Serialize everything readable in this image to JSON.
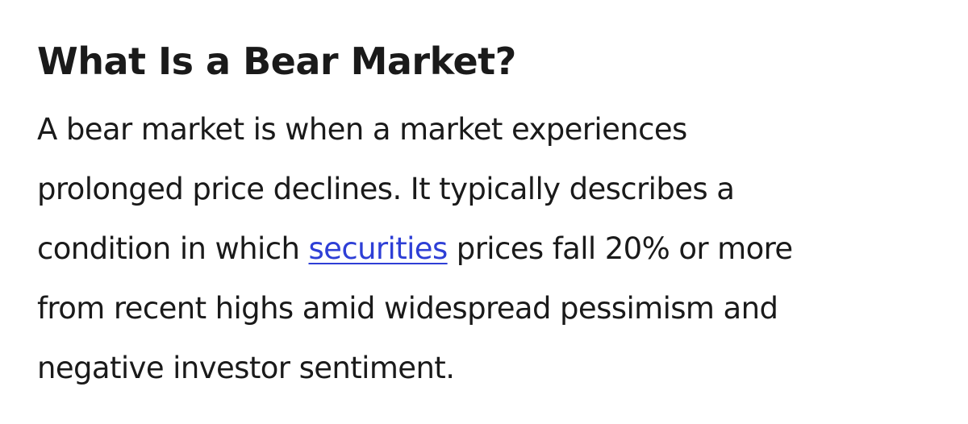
{
  "article": {
    "title": "What Is a Bear Market?",
    "lines": {
      "l1": "A bear market is when a market experiences",
      "l2": "prolonged price declines. It typically describes a",
      "l3_before": "condition in which ",
      "l3_link": "securities",
      "l3_after": " prices fall 20% or more",
      "l4": "from recent highs amid widespread pessimism and",
      "l5": "negative investor sentiment."
    },
    "link_color": "#2e3fd6"
  }
}
